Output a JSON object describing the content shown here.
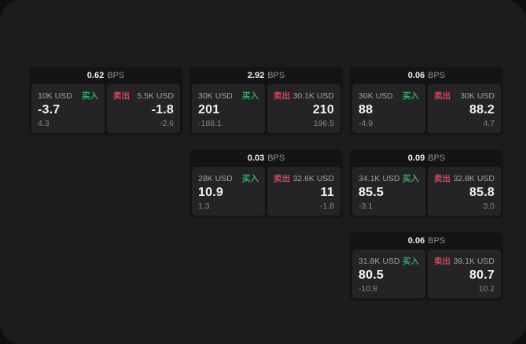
{
  "labels": {
    "bps_unit": "BPS",
    "buy": "买入",
    "sell": "卖出"
  },
  "colors": {
    "buy_green": "#35a964",
    "sell_red": "#cc4a5e",
    "window_bg": "#1c1c1e",
    "card_bg": "#141415",
    "panel_bg": "#242427"
  },
  "cards": [
    {
      "bps": "0.62",
      "buy": {
        "amount": "10K USD",
        "price": "-3.7",
        "sub": "4.3"
      },
      "sell": {
        "amount": "5.5K USD",
        "price": "-1.8",
        "sub": "-2.6"
      }
    },
    {
      "bps": "2.92",
      "buy": {
        "amount": "30K USD",
        "price": "201",
        "sub": "-188.1"
      },
      "sell": {
        "amount": "30.1K USD",
        "price": "210",
        "sub": "196.5"
      }
    },
    {
      "bps": "0.06",
      "buy": {
        "amount": "30K USD",
        "price": "88",
        "sub": "-4.9"
      },
      "sell": {
        "amount": "30K USD",
        "price": "88.2",
        "sub": "4.7"
      }
    },
    {
      "bps": "0.03",
      "buy": {
        "amount": "28K USD",
        "price": "10.9",
        "sub": "1.3"
      },
      "sell": {
        "amount": "32.6K USD",
        "price": "11",
        "sub": "-1.8"
      }
    },
    {
      "bps": "0.09",
      "buy": {
        "amount": "34.1K USD",
        "price": "85.5",
        "sub": "-3.1"
      },
      "sell": {
        "amount": "32.8K USD",
        "price": "85.8",
        "sub": "3.0"
      }
    },
    {
      "bps": "0.06",
      "buy": {
        "amount": "31.8K USD",
        "price": "80.5",
        "sub": "-10.8"
      },
      "sell": {
        "amount": "39.1K USD",
        "price": "80.7",
        "sub": "10.2"
      }
    }
  ]
}
